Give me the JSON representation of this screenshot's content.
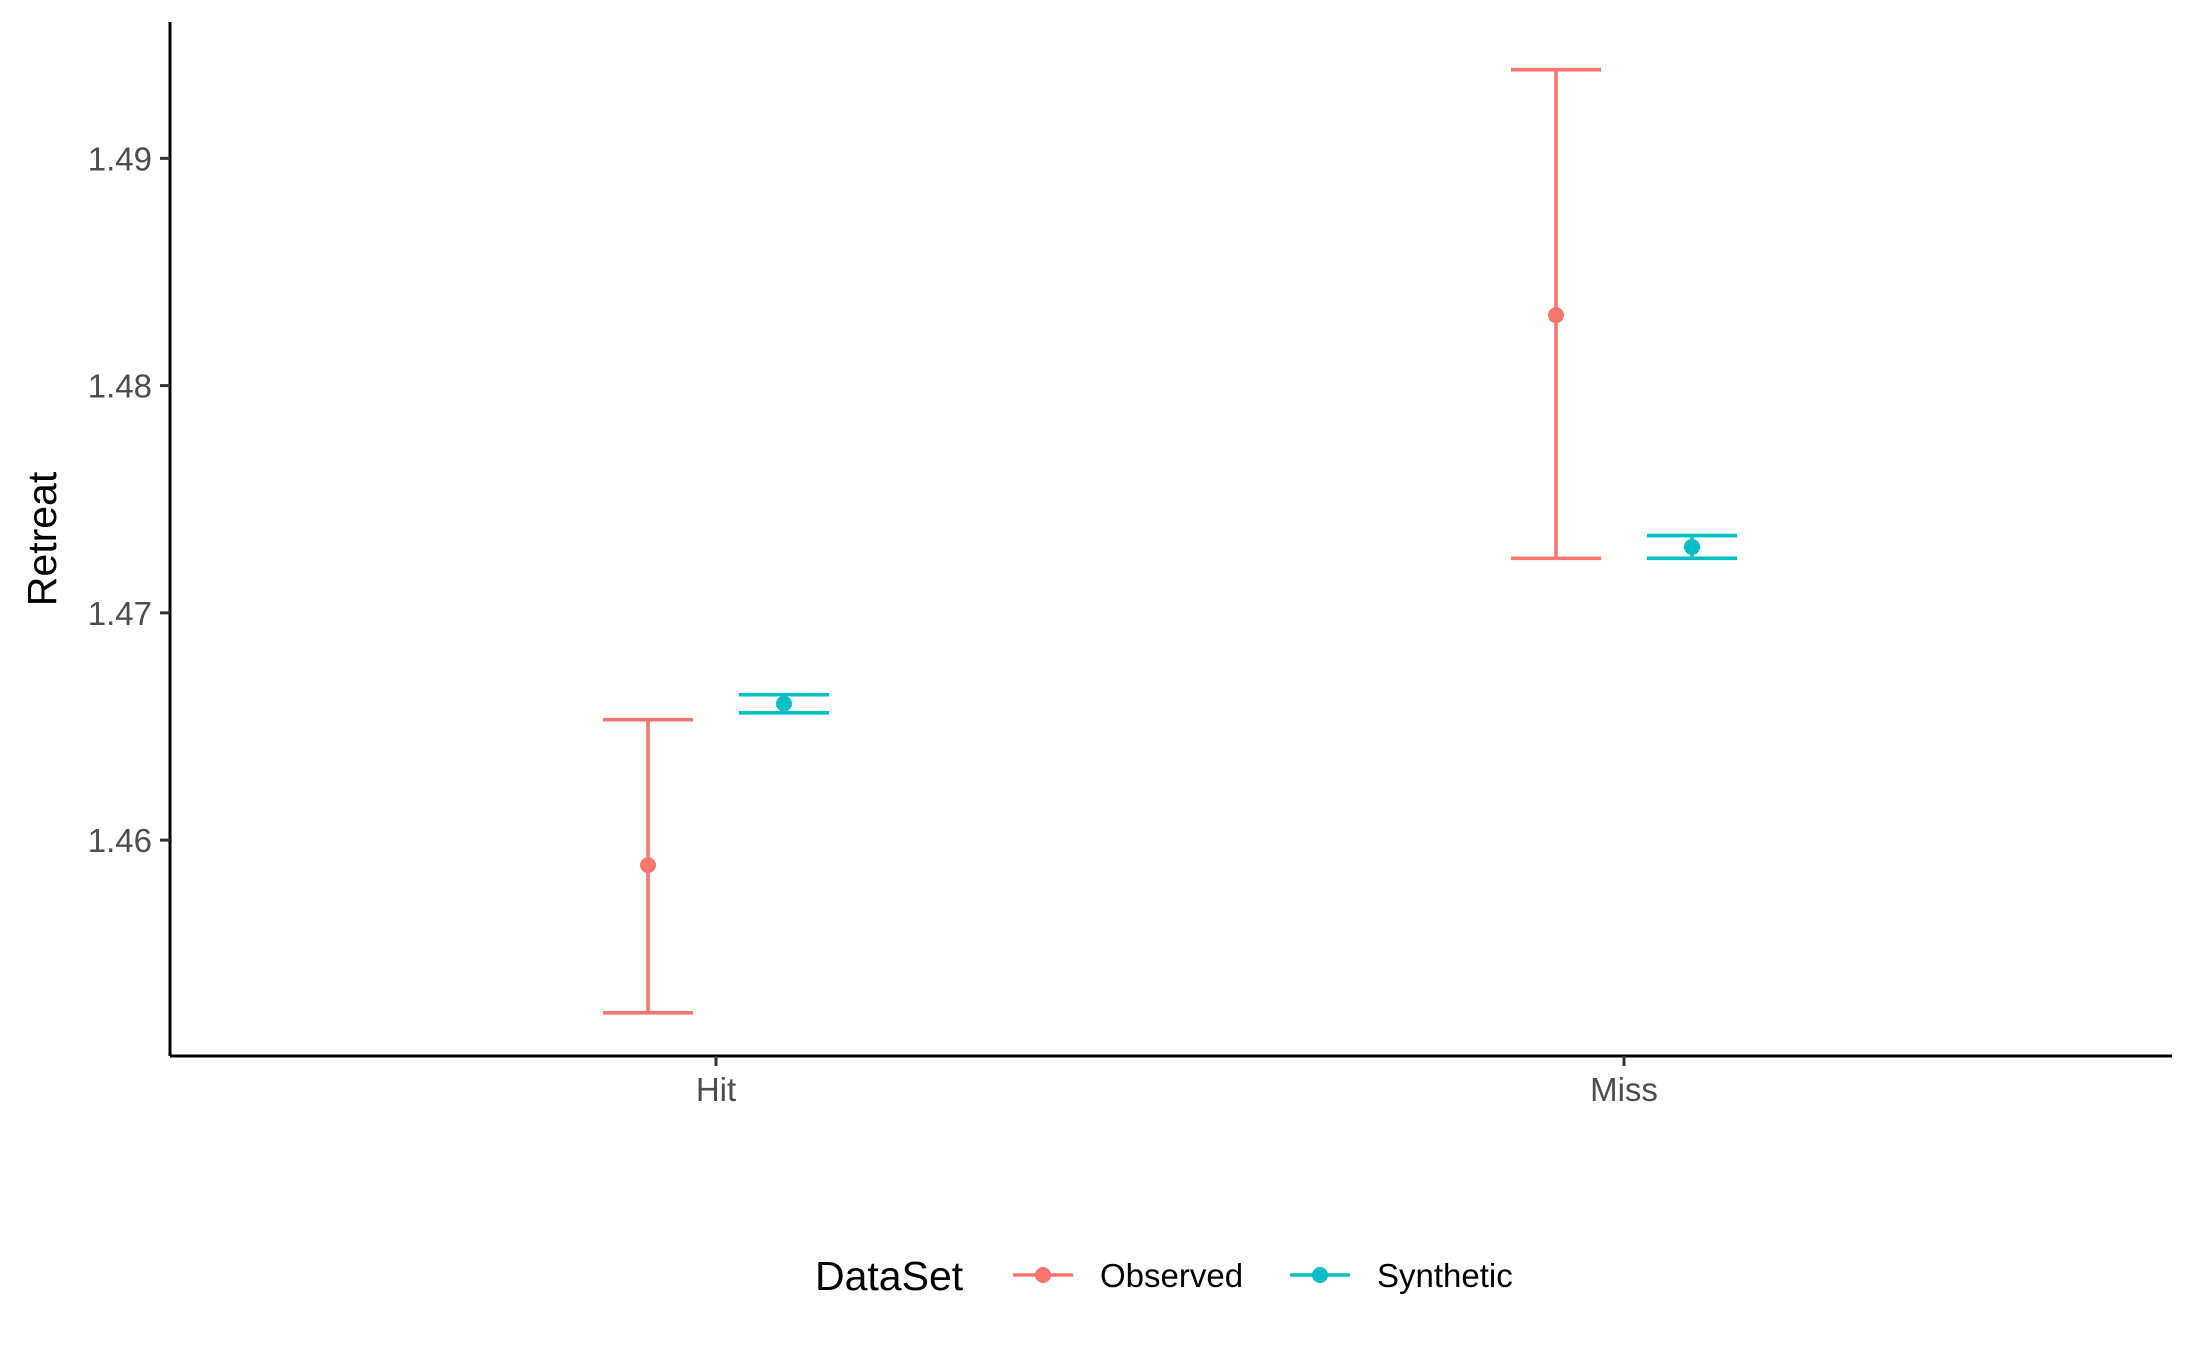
{
  "chart_data": {
    "type": "errorbar",
    "title": "",
    "xlabel": "",
    "ylabel": "Retreat",
    "categories": [
      "Hit",
      "Miss"
    ],
    "ylim": [
      1.4505,
      1.496
    ],
    "yticks": [
      1.46,
      1.47,
      1.48,
      1.49
    ],
    "ytick_labels": [
      "1.46",
      "1.47",
      "1.48",
      "1.49"
    ],
    "grid": false,
    "legend": {
      "title": "DataSet",
      "position": "bottom"
    },
    "series": [
      {
        "name": "Observed",
        "color": "#F8766D",
        "points": [
          {
            "category": "Hit",
            "y": 1.4589,
            "ymin": 1.4524,
            "ymax": 1.4653
          },
          {
            "category": "Miss",
            "y": 1.4831,
            "ymin": 1.4724,
            "ymax": 1.4939
          }
        ]
      },
      {
        "name": "Synthetic",
        "color": "#00BFC4",
        "points": [
          {
            "category": "Hit",
            "y": 1.466,
            "ymin": 1.4656,
            "ymax": 1.4664
          },
          {
            "category": "Miss",
            "y": 1.4729,
            "ymin": 1.4724,
            "ymax": 1.4734
          }
        ]
      }
    ]
  }
}
